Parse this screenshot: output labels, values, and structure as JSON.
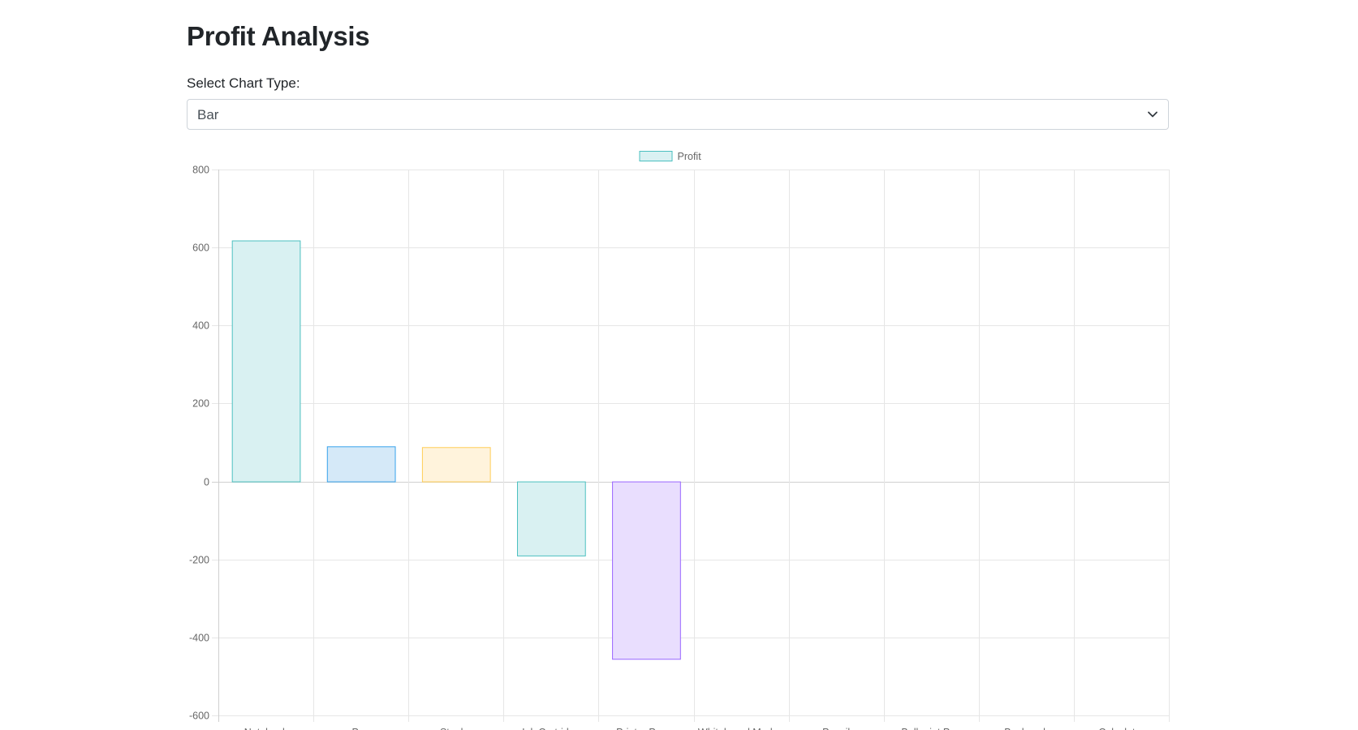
{
  "header": {
    "title": "Profit Analysis"
  },
  "controls": {
    "select_label": "Select Chart Type:",
    "chart_type_selected": "Bar",
    "chevron_icon": "chevron-down-icon"
  },
  "chart_data": {
    "type": "bar",
    "title": "",
    "xlabel": "",
    "ylabel": "",
    "ylim": [
      -600,
      800
    ],
    "yticks": [
      800,
      600,
      400,
      200,
      0,
      -200,
      -400,
      -600
    ],
    "grid": true,
    "legend_position": "top-center",
    "categories": [
      "Notebook",
      "Pen",
      "Stapler",
      "Ink Cartridge",
      "Printer Paper",
      "Whiteboard Marker",
      "Pencil",
      "Ballpoint Pen",
      "Backpack",
      "Calculator"
    ],
    "series": [
      {
        "name": "Profit",
        "values": [
          618,
          90,
          88,
          -190,
          -455,
          0,
          0,
          0,
          0,
          0
        ],
        "fill_colors": [
          "#d9f1f2",
          "#d5e9f8",
          "#fff3dc",
          "#d9f1f2",
          "#e9defe",
          "#ffdfe5",
          "#ffe9d6",
          "#d9f1f2",
          "#d5e9f8",
          "#fff3dc"
        ],
        "border_colors": [
          "#4bc0c0",
          "#36a2eb",
          "#ffcd56",
          "#4bc0c0",
          "#9966ff",
          "#ff6384",
          "#ff9f40",
          "#4bc0c0",
          "#36a2eb",
          "#ffcd56"
        ],
        "legend_fill": "#d9f1f2",
        "legend_border": "#4bc0c0"
      }
    ]
  }
}
